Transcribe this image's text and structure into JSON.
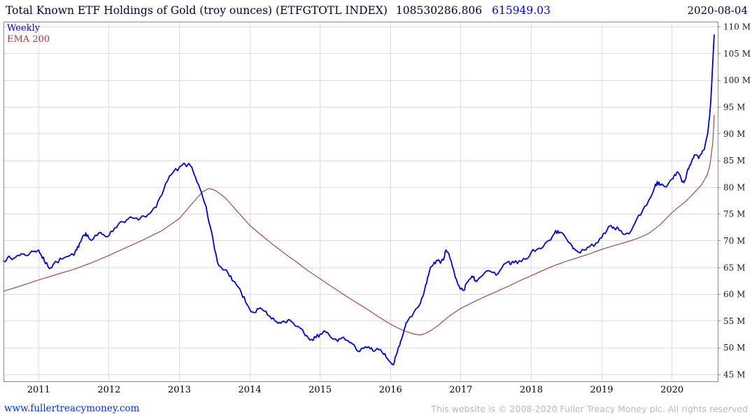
{
  "header": {
    "title": "Total Known ETF Holdings of Gold (troy ounces) (ETFGTOTL INDEX)",
    "last_value": "108530286.806",
    "change_value": "615949.03",
    "date": "2020-08-04"
  },
  "legend": {
    "weekly": "Weekly",
    "ema": "EMA 200"
  },
  "footer": {
    "link": "www.fullertreacymoney.com",
    "copyright": "This website is © 2008-2020 Fuller Treacy Money plc. All rights reserved"
  },
  "colors": {
    "title": "#000033",
    "change": "#0000e0",
    "weekly": "#0000cc",
    "ema": "#9e3a38",
    "grid": "#dcdcdc",
    "border": "#8a8a8a",
    "axis_text": "#1a1a1a",
    "x_label": "#000000",
    "link": "#0033cc",
    "copyright": "#b8b8b8"
  },
  "chart_data": {
    "type": "line",
    "title": "Total Known ETF Holdings of Gold (troy ounces) (ETFGTOTL INDEX)",
    "xlabel": "",
    "ylabel": "",
    "values_unit": "millions of troy ounces",
    "as_of_date": "2020-08-04",
    "last_value": 108530286.806,
    "last_change": 615949.03,
    "grid": true,
    "legend_position": "top-left",
    "x_domain": [
      2010.5,
      2020.65
    ],
    "y_domain": [
      43.75,
      111.0
    ],
    "x_ticks": [
      2011,
      2012,
      2013,
      2014,
      2015,
      2016,
      2017,
      2018,
      2019,
      2020
    ],
    "y_ticks": [
      45,
      50,
      55,
      60,
      65,
      70,
      75,
      80,
      85,
      90,
      95,
      100,
      105,
      110
    ],
    "y_tick_suffix": " M",
    "series": [
      {
        "name": "Weekly",
        "color_key": "weekly",
        "width": 1.8,
        "style": "noisy",
        "points": [
          [
            2010.5,
            66.3
          ],
          [
            2010.56,
            66.9
          ],
          [
            2010.62,
            66.5
          ],
          [
            2010.69,
            67.2
          ],
          [
            2010.75,
            67.6
          ],
          [
            2010.81,
            67.3
          ],
          [
            2010.88,
            67.8
          ],
          [
            2010.94,
            68.1
          ],
          [
            2011.0,
            68.3
          ],
          [
            2011.04,
            67.2
          ],
          [
            2011.08,
            66.3
          ],
          [
            2011.13,
            65.3
          ],
          [
            2011.17,
            65.0
          ],
          [
            2011.21,
            65.7
          ],
          [
            2011.25,
            66.1
          ],
          [
            2011.33,
            66.6
          ],
          [
            2011.42,
            67.1
          ],
          [
            2011.5,
            67.3
          ],
          [
            2011.54,
            68.3
          ],
          [
            2011.58,
            69.6
          ],
          [
            2011.63,
            71.0
          ],
          [
            2011.67,
            71.5
          ],
          [
            2011.71,
            70.6
          ],
          [
            2011.75,
            70.1
          ],
          [
            2011.83,
            71.0
          ],
          [
            2011.88,
            71.6
          ],
          [
            2011.92,
            71.2
          ],
          [
            2012.0,
            71.0
          ],
          [
            2012.08,
            72.4
          ],
          [
            2012.17,
            73.6
          ],
          [
            2012.25,
            73.9
          ],
          [
            2012.33,
            74.3
          ],
          [
            2012.42,
            73.9
          ],
          [
            2012.5,
            74.6
          ],
          [
            2012.58,
            75.1
          ],
          [
            2012.67,
            76.3
          ],
          [
            2012.75,
            78.6
          ],
          [
            2012.83,
            81.2
          ],
          [
            2012.92,
            83.0
          ],
          [
            2013.0,
            83.8
          ],
          [
            2013.06,
            84.5
          ],
          [
            2013.1,
            83.9
          ],
          [
            2013.15,
            84.2
          ],
          [
            2013.19,
            83.2
          ],
          [
            2013.25,
            81.0
          ],
          [
            2013.31,
            79.2
          ],
          [
            2013.38,
            76.4
          ],
          [
            2013.44,
            72.6
          ],
          [
            2013.5,
            68.4
          ],
          [
            2013.56,
            65.4
          ],
          [
            2013.62,
            64.6
          ],
          [
            2013.69,
            64.0
          ],
          [
            2013.75,
            62.6
          ],
          [
            2013.81,
            61.8
          ],
          [
            2013.88,
            60.3
          ],
          [
            2013.94,
            58.6
          ],
          [
            2014.0,
            57.2
          ],
          [
            2014.06,
            56.6
          ],
          [
            2014.13,
            57.3
          ],
          [
            2014.19,
            57.0
          ],
          [
            2014.25,
            56.2
          ],
          [
            2014.31,
            55.4
          ],
          [
            2014.38,
            54.9
          ],
          [
            2014.44,
            54.6
          ],
          [
            2014.5,
            54.8
          ],
          [
            2014.56,
            55.3
          ],
          [
            2014.62,
            54.6
          ],
          [
            2014.69,
            54.0
          ],
          [
            2014.75,
            53.4
          ],
          [
            2014.81,
            52.3
          ],
          [
            2014.88,
            51.6
          ],
          [
            2014.94,
            51.9
          ],
          [
            2015.0,
            52.6
          ],
          [
            2015.06,
            53.2
          ],
          [
            2015.13,
            52.4
          ],
          [
            2015.19,
            51.6
          ],
          [
            2015.25,
            51.2
          ],
          [
            2015.31,
            51.9
          ],
          [
            2015.38,
            51.4
          ],
          [
            2015.44,
            51.0
          ],
          [
            2015.5,
            50.1
          ],
          [
            2015.56,
            49.3
          ],
          [
            2015.62,
            49.9
          ],
          [
            2015.69,
            50.2
          ],
          [
            2015.75,
            49.4
          ],
          [
            2015.81,
            49.9
          ],
          [
            2015.88,
            49.2
          ],
          [
            2015.94,
            48.2
          ],
          [
            2016.0,
            47.3
          ],
          [
            2016.04,
            46.8
          ],
          [
            2016.08,
            48.6
          ],
          [
            2016.13,
            50.4
          ],
          [
            2016.17,
            52.2
          ],
          [
            2016.21,
            54.0
          ],
          [
            2016.25,
            55.2
          ],
          [
            2016.33,
            56.6
          ],
          [
            2016.42,
            58.2
          ],
          [
            2016.46,
            59.6
          ],
          [
            2016.5,
            61.8
          ],
          [
            2016.54,
            63.6
          ],
          [
            2016.58,
            65.2
          ],
          [
            2016.62,
            66.0
          ],
          [
            2016.67,
            66.3
          ],
          [
            2016.71,
            65.8
          ],
          [
            2016.75,
            66.4
          ],
          [
            2016.79,
            68.3
          ],
          [
            2016.83,
            67.6
          ],
          [
            2016.88,
            65.2
          ],
          [
            2016.92,
            63.2
          ],
          [
            2016.96,
            61.8
          ],
          [
            2017.0,
            61.0
          ],
          [
            2017.04,
            60.7
          ],
          [
            2017.08,
            62.1
          ],
          [
            2017.13,
            62.9
          ],
          [
            2017.17,
            63.2
          ],
          [
            2017.21,
            62.6
          ],
          [
            2017.25,
            62.9
          ],
          [
            2017.33,
            63.9
          ],
          [
            2017.42,
            64.3
          ],
          [
            2017.5,
            63.6
          ],
          [
            2017.58,
            64.9
          ],
          [
            2017.67,
            66.1
          ],
          [
            2017.71,
            65.6
          ],
          [
            2017.75,
            65.9
          ],
          [
            2017.83,
            66.3
          ],
          [
            2017.92,
            66.6
          ],
          [
            2018.0,
            67.9
          ],
          [
            2018.08,
            68.4
          ],
          [
            2018.17,
            68.9
          ],
          [
            2018.25,
            70.1
          ],
          [
            2018.33,
            71.4
          ],
          [
            2018.38,
            71.9
          ],
          [
            2018.42,
            71.6
          ],
          [
            2018.5,
            70.4
          ],
          [
            2018.58,
            69.1
          ],
          [
            2018.62,
            68.4
          ],
          [
            2018.67,
            67.9
          ],
          [
            2018.75,
            68.3
          ],
          [
            2018.83,
            68.9
          ],
          [
            2018.92,
            69.6
          ],
          [
            2019.0,
            70.6
          ],
          [
            2019.08,
            72.1
          ],
          [
            2019.13,
            72.9
          ],
          [
            2019.17,
            72.6
          ],
          [
            2019.25,
            72.0
          ],
          [
            2019.33,
            71.2
          ],
          [
            2019.42,
            71.9
          ],
          [
            2019.5,
            74.1
          ],
          [
            2019.58,
            75.6
          ],
          [
            2019.67,
            77.6
          ],
          [
            2019.75,
            79.9
          ],
          [
            2019.79,
            81.1
          ],
          [
            2019.83,
            80.4
          ],
          [
            2019.92,
            80.1
          ],
          [
            2020.0,
            81.6
          ],
          [
            2020.04,
            82.4
          ],
          [
            2020.08,
            82.9
          ],
          [
            2020.13,
            81.6
          ],
          [
            2020.17,
            80.9
          ],
          [
            2020.21,
            82.6
          ],
          [
            2020.25,
            84.1
          ],
          [
            2020.29,
            85.3
          ],
          [
            2020.33,
            86.1
          ],
          [
            2020.38,
            85.4
          ],
          [
            2020.42,
            86.3
          ],
          [
            2020.46,
            87.1
          ],
          [
            2020.5,
            89.6
          ],
          [
            2020.52,
            91.5
          ],
          [
            2020.54,
            94.2
          ],
          [
            2020.56,
            98.0
          ],
          [
            2020.58,
            103.5
          ],
          [
            2020.6,
            108.5
          ]
        ]
      },
      {
        "name": "EMA 200",
        "color_key": "ema",
        "width": 1.1,
        "style": "smooth",
        "points": [
          [
            2010.5,
            60.6
          ],
          [
            2010.75,
            61.6
          ],
          [
            2011.0,
            62.7
          ],
          [
            2011.25,
            63.7
          ],
          [
            2011.5,
            64.7
          ],
          [
            2011.75,
            65.9
          ],
          [
            2012.0,
            67.3
          ],
          [
            2012.25,
            68.8
          ],
          [
            2012.5,
            70.3
          ],
          [
            2012.75,
            71.9
          ],
          [
            2013.0,
            74.2
          ],
          [
            2013.13,
            76.2
          ],
          [
            2013.25,
            78.0
          ],
          [
            2013.33,
            79.2
          ],
          [
            2013.42,
            79.8
          ],
          [
            2013.5,
            79.5
          ],
          [
            2013.58,
            78.8
          ],
          [
            2013.67,
            77.8
          ],
          [
            2013.75,
            76.6
          ],
          [
            2013.83,
            75.4
          ],
          [
            2013.92,
            74.1
          ],
          [
            2014.0,
            72.9
          ],
          [
            2014.17,
            71.0
          ],
          [
            2014.33,
            69.3
          ],
          [
            2014.5,
            67.6
          ],
          [
            2014.67,
            66.0
          ],
          [
            2014.83,
            64.4
          ],
          [
            2015.0,
            62.9
          ],
          [
            2015.17,
            61.4
          ],
          [
            2015.33,
            60.0
          ],
          [
            2015.5,
            58.6
          ],
          [
            2015.67,
            57.2
          ],
          [
            2015.83,
            55.8
          ],
          [
            2016.0,
            54.4
          ],
          [
            2016.17,
            53.3
          ],
          [
            2016.33,
            52.6
          ],
          [
            2016.42,
            52.4
          ],
          [
            2016.5,
            52.7
          ],
          [
            2016.58,
            53.3
          ],
          [
            2016.67,
            54.1
          ],
          [
            2016.75,
            55.0
          ],
          [
            2016.83,
            55.9
          ],
          [
            2016.92,
            56.7
          ],
          [
            2017.0,
            57.4
          ],
          [
            2017.17,
            58.5
          ],
          [
            2017.33,
            59.5
          ],
          [
            2017.5,
            60.5
          ],
          [
            2017.67,
            61.5
          ],
          [
            2017.83,
            62.5
          ],
          [
            2018.0,
            63.5
          ],
          [
            2018.17,
            64.5
          ],
          [
            2018.33,
            65.4
          ],
          [
            2018.5,
            66.2
          ],
          [
            2018.67,
            66.9
          ],
          [
            2018.83,
            67.6
          ],
          [
            2019.0,
            68.4
          ],
          [
            2019.17,
            69.1
          ],
          [
            2019.33,
            69.7
          ],
          [
            2019.5,
            70.4
          ],
          [
            2019.67,
            71.4
          ],
          [
            2019.83,
            73.0
          ],
          [
            2020.0,
            75.3
          ],
          [
            2020.08,
            76.2
          ],
          [
            2020.17,
            77.1
          ],
          [
            2020.25,
            78.1
          ],
          [
            2020.33,
            79.2
          ],
          [
            2020.42,
            80.5
          ],
          [
            2020.5,
            82.3
          ],
          [
            2020.54,
            84.2
          ],
          [
            2020.58,
            88.5
          ],
          [
            2020.6,
            93.5
          ]
        ]
      }
    ]
  }
}
